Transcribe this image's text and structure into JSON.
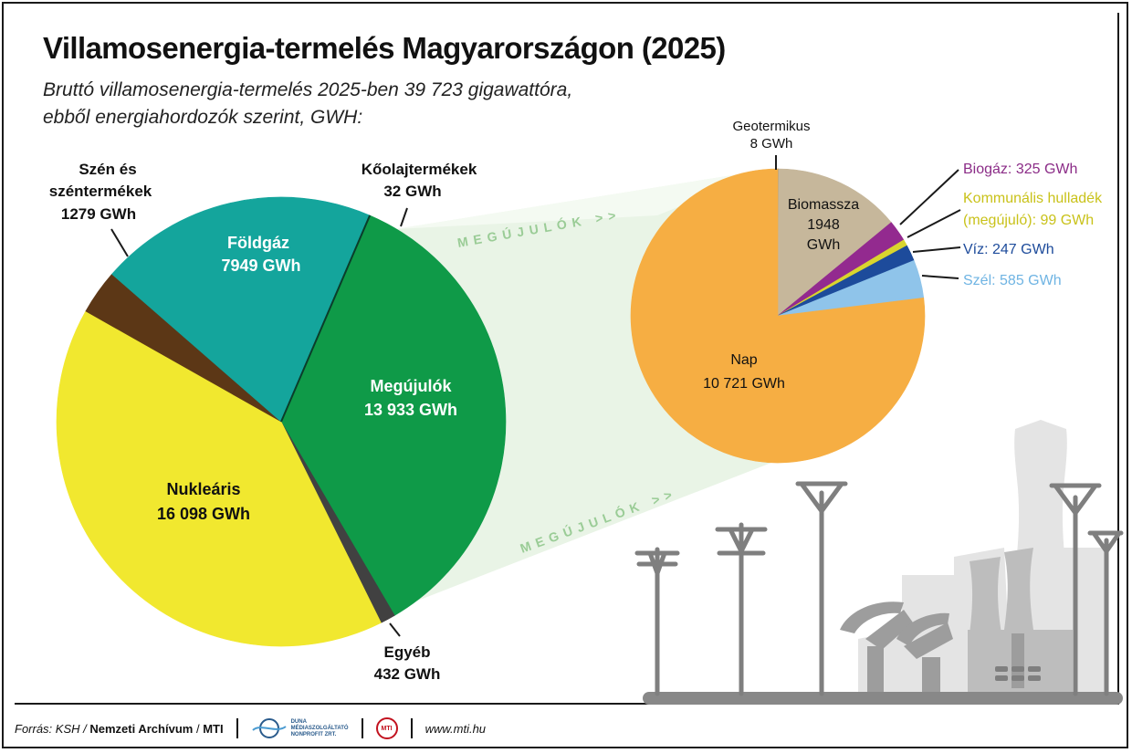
{
  "header": {
    "title": "Villamosenergia-termelés Magyarországon (2025)",
    "subtitle_line1": "Bruttó villamosenergia-termelés 2025-ben 39 723 gigawattóra,",
    "subtitle_line2": "ebből energiahordozók szerint, GWH:"
  },
  "banner_text": "MEGÚJULÓK >>",
  "chart_data": [
    {
      "type": "pie",
      "title": "",
      "unit": "GWh",
      "slices": [
        {
          "label": "Megújulók",
          "value": 13933,
          "value_text": "13 933 GWh",
          "color": "#0f9a48"
        },
        {
          "label": "Egyéb",
          "value": 432,
          "value_text": "432 GWh",
          "color": "#414141"
        },
        {
          "label": "Nukleáris",
          "value": 16098,
          "value_text": "16 098 GWh",
          "color": "#f1e82f"
        },
        {
          "label": "Szén és széntermékek",
          "value": 1279,
          "value_text": "1279 GWh",
          "color": "#5c3716"
        },
        {
          "label": "Földgáz",
          "value": 7949,
          "value_text": "7949 GWh",
          "color": "#14a59c"
        },
        {
          "label": "Kőolajtermékek",
          "value": 32,
          "value_text": "32 GWh",
          "color": "#0b7f68"
        }
      ]
    },
    {
      "type": "pie",
      "title": "",
      "unit": "GWh",
      "slices": [
        {
          "label": "Geotermikus",
          "value": 8,
          "value_text": "8 GWh",
          "color": "#555555"
        },
        {
          "label": "Biomassza",
          "value": 1948,
          "value_text": "1948 GWh",
          "color": "#c6b79b"
        },
        {
          "label": "Biogáz",
          "value": 325,
          "value_text": "325 GWh",
          "color": "#932a8f"
        },
        {
          "label": "Kommunális hulladék (megújuló)",
          "value": 99,
          "value_text": "99 GWh",
          "color": "#d9d52e"
        },
        {
          "label": "Víz",
          "value": 247,
          "value_text": "247 GWh",
          "color": "#1d4b9b"
        },
        {
          "label": "Szél",
          "value": 585,
          "value_text": "585 GWh",
          "color": "#8fc4ea"
        },
        {
          "label": "Nap",
          "value": 10721,
          "value_text": "10 721 GWh",
          "color": "#f6ae43"
        }
      ]
    }
  ],
  "labels": {
    "szen_line1": "Szén és",
    "szen_line2": "széntermékek",
    "szen_value": "1279 GWh",
    "koolaj_name": "Kőolajtermékek",
    "koolaj_value": "32 GWh",
    "foldgaz_name": "Földgáz",
    "foldgaz_value": "7949 GWh",
    "megujulok_name": "Megújulók",
    "megujulok_value": "13 933 GWh",
    "nuklearis_name": "Nukleáris",
    "nuklearis_value": "16 098 GWh",
    "egyeb_name": "Egyéb",
    "egyeb_value": "432 GWh",
    "geo_name": "Geotermikus",
    "geo_value": "8 GWh",
    "bio_name": "Biomassza",
    "bio_value1": "1948",
    "bio_value2": "GWh",
    "biogaz": "Biogáz: 325 GWh",
    "komm_line1": "Kommunális hulladék",
    "komm_line2": "(megújuló): 99 GWh",
    "viz": "Víz: 247 GWh",
    "szel": "Szél: 585 GWh",
    "nap_name": "Nap",
    "nap_value": "10 721 GWh"
  },
  "footer": {
    "source_prefix": "Forrás: KSH /",
    "archive": "Nemzeti Archívum",
    "slash": "/",
    "mti": "MTI",
    "duna_logo_text1": "DUNA",
    "duna_logo_text2": "MÉDIASZOLGÁLTATÓ",
    "duna_logo_text3": "NONPROFIT ZRT.",
    "mti_logo_text": "MTI",
    "url": "www.mti.hu"
  }
}
